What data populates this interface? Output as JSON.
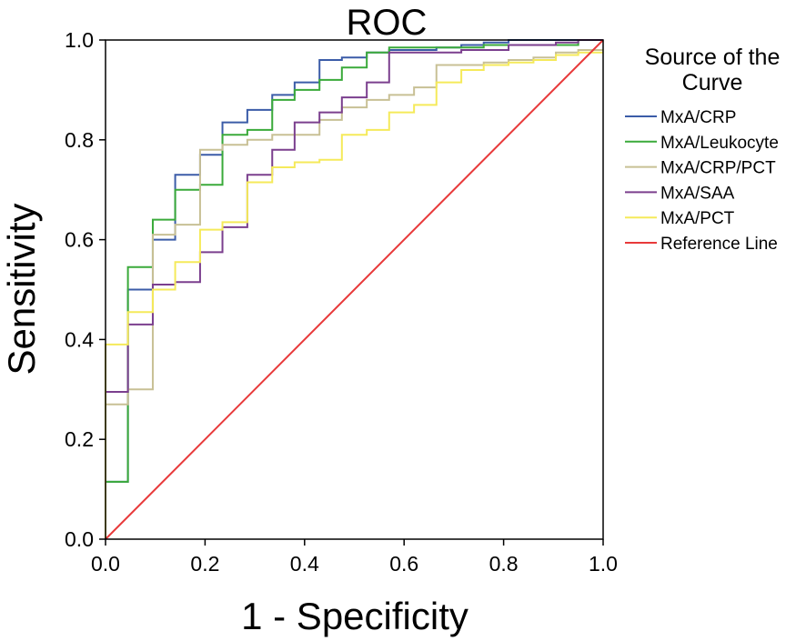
{
  "chart_data": {
    "type": "line",
    "title": "ROC",
    "xlabel": "1 - Specificity",
    "ylabel": "Sensitivity",
    "xlim": [
      0,
      1
    ],
    "ylim": [
      0,
      1
    ],
    "xticks": [
      "0.0",
      "0.2",
      "0.4",
      "0.6",
      "0.8",
      "1.0"
    ],
    "yticks": [
      "0.0",
      "0.2",
      "0.4",
      "0.6",
      "0.8",
      "1.0"
    ],
    "legend": {
      "title_line1": "Source of the",
      "title_line2": "Curve",
      "placement": "right"
    },
    "series": [
      {
        "name": "MxA/CRP",
        "color": "#3b5ca8",
        "x": [
          0,
          0,
          0.045,
          0.045,
          0.095,
          0.095,
          0.14,
          0.14,
          0.19,
          0.19,
          0.235,
          0.235,
          0.285,
          0.285,
          0.335,
          0.335,
          0.38,
          0.38,
          0.43,
          0.43,
          0.475,
          0.475,
          0.525,
          0.525,
          0.57,
          0.57,
          0.665,
          0.665,
          0.715,
          0.715,
          0.76,
          0.76,
          0.81,
          0.81,
          0.86,
          0.86,
          0.905,
          0.905,
          0.95,
          0.95,
          1.0
        ],
        "y": [
          0,
          0.115,
          0.115,
          0.5,
          0.5,
          0.6,
          0.6,
          0.73,
          0.73,
          0.77,
          0.77,
          0.835,
          0.835,
          0.86,
          0.86,
          0.89,
          0.89,
          0.915,
          0.915,
          0.96,
          0.96,
          0.965,
          0.965,
          0.975,
          0.975,
          0.98,
          0.98,
          0.985,
          0.985,
          0.99,
          0.99,
          0.995,
          0.995,
          1.0,
          1.0,
          1.0,
          1.0,
          1.0,
          1.0,
          1.0,
          1.0
        ]
      },
      {
        "name": "MxA/Leukocyte",
        "color": "#3aaa3a",
        "x": [
          0,
          0,
          0.045,
          0.045,
          0.095,
          0.095,
          0.14,
          0.14,
          0.19,
          0.19,
          0.235,
          0.235,
          0.285,
          0.285,
          0.335,
          0.335,
          0.38,
          0.38,
          0.43,
          0.43,
          0.475,
          0.475,
          0.525,
          0.525,
          0.57,
          0.57,
          0.665,
          0.665,
          0.76,
          0.76,
          0.86,
          0.86,
          0.95,
          0.95,
          1.0
        ],
        "y": [
          0,
          0.115,
          0.115,
          0.545,
          0.545,
          0.64,
          0.64,
          0.7,
          0.7,
          0.71,
          0.71,
          0.81,
          0.81,
          0.82,
          0.82,
          0.88,
          0.88,
          0.9,
          0.9,
          0.92,
          0.92,
          0.945,
          0.945,
          0.975,
          0.975,
          0.985,
          0.985,
          0.985,
          0.985,
          0.99,
          0.99,
          0.99,
          0.99,
          1.0,
          1.0
        ]
      },
      {
        "name": "MxA/CRP/PCT",
        "color": "#c8c095",
        "x": [
          0,
          0,
          0.045,
          0.045,
          0.095,
          0.095,
          0.14,
          0.14,
          0.19,
          0.19,
          0.235,
          0.235,
          0.285,
          0.285,
          0.335,
          0.335,
          0.38,
          0.38,
          0.43,
          0.43,
          0.475,
          0.475,
          0.525,
          0.525,
          0.57,
          0.57,
          0.62,
          0.62,
          0.665,
          0.665,
          0.715,
          0.715,
          0.76,
          0.76,
          0.81,
          0.81,
          0.86,
          0.86,
          0.905,
          0.905,
          0.95,
          0.95,
          1.0
        ],
        "y": [
          0,
          0.27,
          0.27,
          0.3,
          0.3,
          0.61,
          0.61,
          0.63,
          0.63,
          0.78,
          0.78,
          0.79,
          0.79,
          0.8,
          0.8,
          0.81,
          0.81,
          0.81,
          0.81,
          0.84,
          0.84,
          0.865,
          0.865,
          0.88,
          0.88,
          0.89,
          0.89,
          0.905,
          0.905,
          0.95,
          0.95,
          0.95,
          0.95,
          0.955,
          0.955,
          0.96,
          0.96,
          0.965,
          0.965,
          0.975,
          0.975,
          0.98,
          0.98
        ]
      },
      {
        "name": "MxA/SAA",
        "color": "#7b3f8e",
        "x": [
          0,
          0,
          0.045,
          0.045,
          0.095,
          0.095,
          0.14,
          0.14,
          0.19,
          0.19,
          0.235,
          0.235,
          0.285,
          0.285,
          0.335,
          0.335,
          0.38,
          0.38,
          0.43,
          0.43,
          0.475,
          0.475,
          0.525,
          0.525,
          0.57,
          0.57,
          0.715,
          0.715,
          0.81,
          0.81,
          0.905,
          0.905,
          0.95,
          0.95,
          1.0
        ],
        "y": [
          0,
          0.295,
          0.295,
          0.43,
          0.43,
          0.51,
          0.51,
          0.515,
          0.515,
          0.575,
          0.575,
          0.625,
          0.625,
          0.73,
          0.73,
          0.78,
          0.78,
          0.835,
          0.835,
          0.855,
          0.855,
          0.885,
          0.885,
          0.915,
          0.915,
          0.975,
          0.975,
          0.98,
          0.98,
          0.99,
          0.99,
          0.995,
          0.995,
          1.0,
          1.0
        ]
      },
      {
        "name": "MxA/PCT",
        "color": "#f5ea5a",
        "x": [
          0,
          0,
          0.045,
          0.045,
          0.095,
          0.095,
          0.14,
          0.14,
          0.19,
          0.19,
          0.235,
          0.235,
          0.285,
          0.285,
          0.335,
          0.335,
          0.38,
          0.38,
          0.43,
          0.43,
          0.475,
          0.475,
          0.525,
          0.525,
          0.57,
          0.57,
          0.62,
          0.62,
          0.665,
          0.665,
          0.715,
          0.715,
          0.76,
          0.76,
          0.81,
          0.81,
          0.86,
          0.86,
          0.905,
          0.905,
          0.95,
          0.95,
          1.0
        ],
        "y": [
          0,
          0.39,
          0.39,
          0.455,
          0.455,
          0.5,
          0.5,
          0.555,
          0.555,
          0.62,
          0.62,
          0.635,
          0.635,
          0.715,
          0.715,
          0.745,
          0.745,
          0.755,
          0.755,
          0.76,
          0.76,
          0.81,
          0.81,
          0.82,
          0.82,
          0.855,
          0.855,
          0.87,
          0.87,
          0.915,
          0.915,
          0.94,
          0.94,
          0.95,
          0.95,
          0.955,
          0.955,
          0.96,
          0.96,
          0.97,
          0.97,
          0.975,
          0.975
        ]
      },
      {
        "name": "Reference Line",
        "color": "#e8393a",
        "x": [
          0,
          1
        ],
        "y": [
          0,
          1
        ]
      }
    ]
  }
}
